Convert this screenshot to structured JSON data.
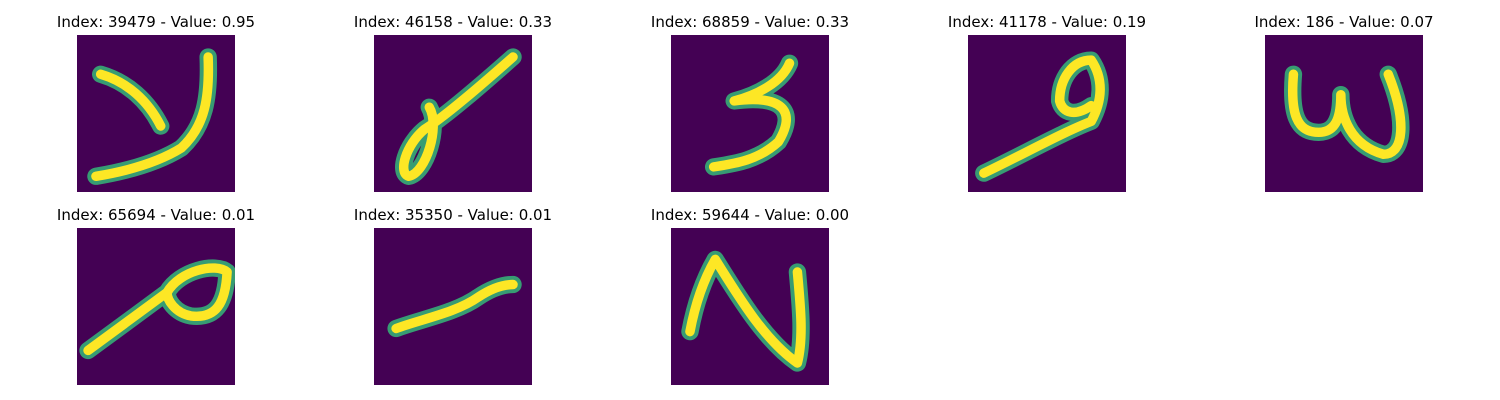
{
  "figure": {
    "panels": [
      {
        "title": "Index: 39479 - Value: 0.95",
        "image": "digit-39479-image",
        "background_color": "#440154",
        "stroke_color": "#fde725",
        "edge_color": "#35b779"
      },
      {
        "title": "Index: 46158 - Value: 0.33",
        "image": "digit-46158-image",
        "background_color": "#440154",
        "stroke_color": "#fde725",
        "edge_color": "#35b779"
      },
      {
        "title": "Index: 68859 - Value: 0.33",
        "image": "digit-68859-image",
        "background_color": "#440154",
        "stroke_color": "#fde725",
        "edge_color": "#35b779"
      },
      {
        "title": "Index: 41178 - Value: 0.19",
        "image": "digit-41178-image",
        "background_color": "#440154",
        "stroke_color": "#fde725",
        "edge_color": "#35b779"
      },
      {
        "title": "Index: 186 - Value: 0.07",
        "image": "digit-186-image",
        "background_color": "#440154",
        "stroke_color": "#fde725",
        "edge_color": "#35b779"
      },
      {
        "title": "Index: 65694 - Value: 0.01",
        "image": "digit-65694-image",
        "background_color": "#440154",
        "stroke_color": "#fde725",
        "edge_color": "#35b779"
      },
      {
        "title": "Index: 35350 - Value: 0.01",
        "image": "digit-35350-image",
        "background_color": "#440154",
        "stroke_color": "#fde725",
        "edge_color": "#35b779"
      },
      {
        "title": "Index: 59644 - Value: 0.00",
        "image": "digit-59644-image",
        "background_color": "#440154",
        "stroke_color": "#fde725",
        "edge_color": "#35b779"
      }
    ]
  }
}
